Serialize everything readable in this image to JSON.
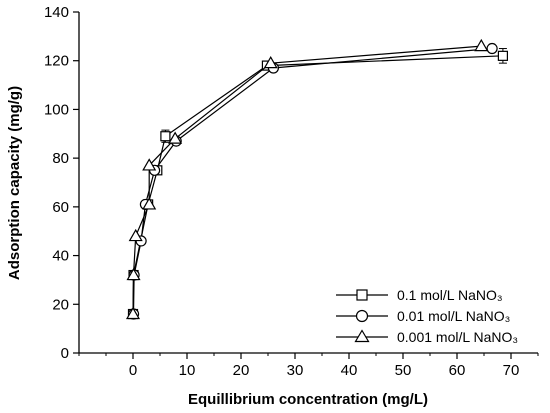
{
  "chart_data": {
    "type": "scatter",
    "title": "",
    "xlabel": "Equillibrium concentration (mg/L)",
    "ylabel": "Adsorption capacity (mg/g)",
    "xlim": [
      -10,
      75
    ],
    "ylim": [
      0,
      140
    ],
    "x_ticks": [
      0,
      10,
      20,
      30,
      40,
      50,
      60,
      70
    ],
    "y_ticks": [
      0,
      20,
      40,
      60,
      80,
      100,
      120,
      140
    ],
    "grid": false,
    "legend_position": "bottom-right",
    "series": [
      {
        "name": "0.1 mol/L NaNO₃",
        "marker": "square",
        "x": [
          0.0,
          0.1,
          2.8,
          4.5,
          6.0,
          24.8,
          68.5
        ],
        "y": [
          16,
          32,
          61,
          75,
          89,
          118,
          122
        ],
        "error": [
          0,
          0,
          0,
          0,
          2.5,
          1.5,
          3
        ]
      },
      {
        "name": "0.01 mol/L NaNO₃",
        "marker": "circle",
        "x": [
          0.1,
          0.2,
          1.5,
          2.3,
          4.0,
          8.0,
          26.0,
          66.5
        ],
        "y": [
          16,
          32,
          46,
          61,
          75,
          87,
          117,
          125
        ],
        "error": [
          0,
          0,
          0,
          0,
          0,
          0,
          0,
          0
        ]
      },
      {
        "name": "0.001 mol/L NaNO₃",
        "marker": "triangle",
        "x": [
          0.0,
          0.1,
          0.5,
          3.0,
          3.0,
          7.8,
          25.5,
          64.5
        ],
        "y": [
          16,
          32,
          48,
          61,
          77,
          88,
          119,
          126
        ],
        "error": [
          0,
          0,
          0,
          0,
          0,
          0,
          0,
          0
        ]
      }
    ]
  }
}
